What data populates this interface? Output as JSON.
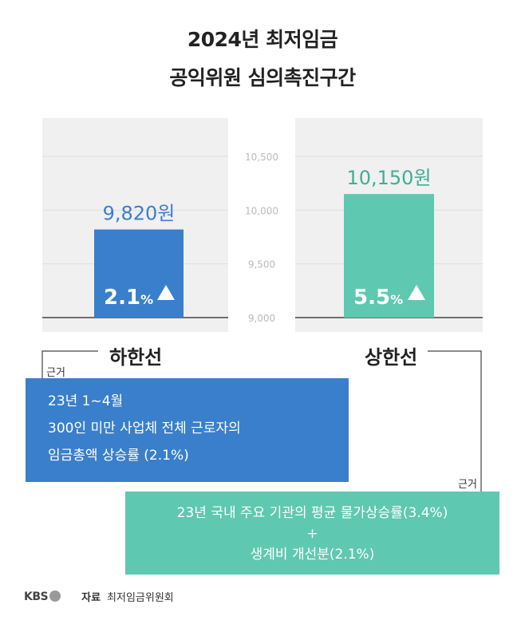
{
  "title_line1": "2024년 최저임금",
  "title_line2": "공익위원 심의촉진구간",
  "chart_data": {
    "type": "bar",
    "ylim": [
      9000,
      10500
    ],
    "yticks": [
      "10,500",
      "10,000",
      "9,500",
      "9,000"
    ],
    "ytick_values": [
      10500,
      10000,
      9500,
      9000
    ],
    "bars": [
      {
        "category": "하한선",
        "value": 9820,
        "value_label": "9,820원",
        "rate": "2.1",
        "rate_unit": "%",
        "color": "#3a7fcb",
        "label_color": "#3a7fcb"
      },
      {
        "category": "상한선",
        "value": 10150,
        "value_label": "10,150원",
        "rate": "5.5",
        "rate_unit": "%",
        "color": "#5fc8b0",
        "label_color": "#3fae94"
      }
    ],
    "arrow_icon": "triangle-up-icon"
  },
  "lower": {
    "label": "하한선",
    "basis_label": "근거",
    "lines": [
      "23년 1~4월",
      "300인 미만 사업체 전체 근로자의",
      "임금총액 상승률 (2.1%)"
    ]
  },
  "upper": {
    "label": "상한선",
    "basis_label": "근거",
    "lines": [
      "23년 국내 주요 기관의 평균 물가상승률(3.4%)",
      "+",
      "생계비 개선분(2.1%)"
    ]
  },
  "footer": {
    "logo": "KBS",
    "source_key": "자료",
    "source_value": "최저임금위원회"
  }
}
